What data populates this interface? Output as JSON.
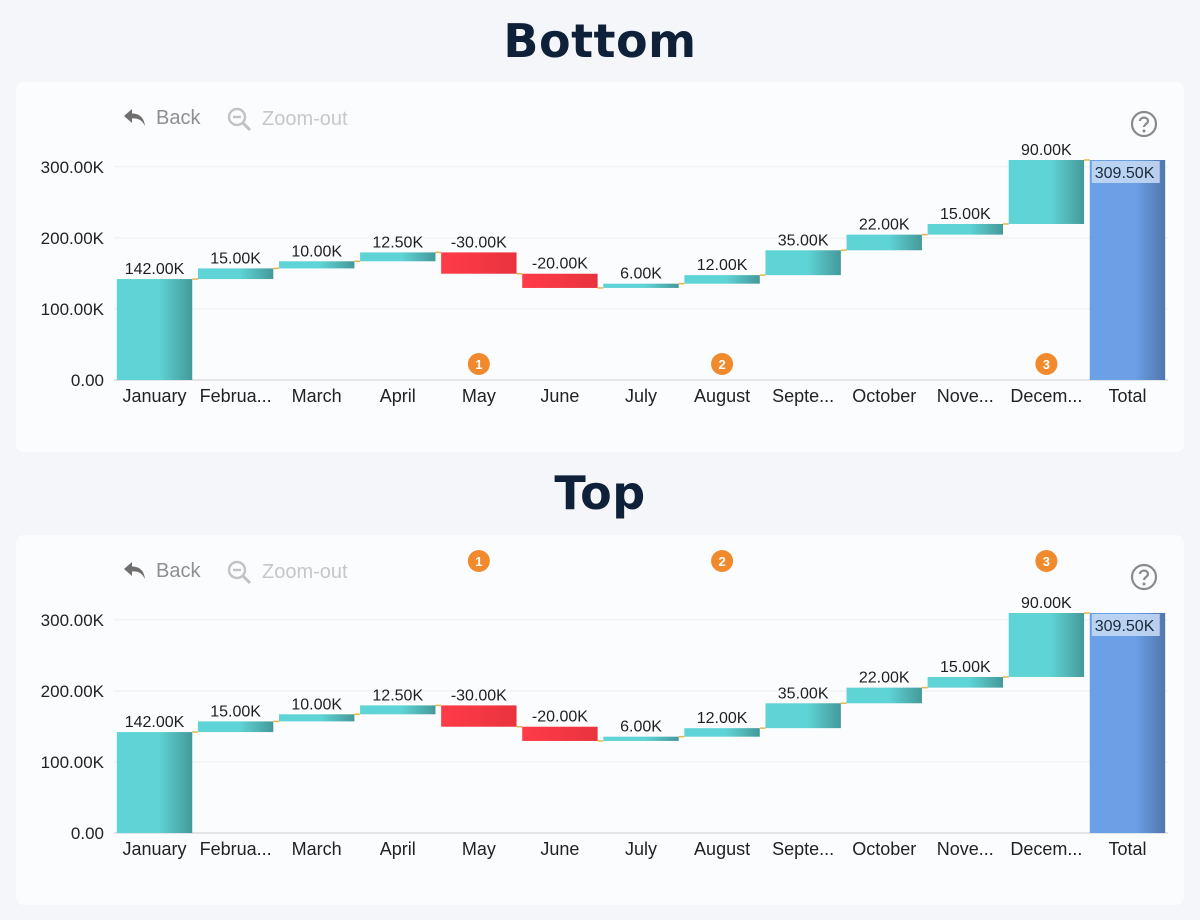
{
  "sections": [
    {
      "title": "Bottom",
      "toolbar": {
        "back_label": "Back",
        "zoom_label": "Zoom-out",
        "back_icon": "undo-arrow-icon",
        "zoom_icon": "zoom-out-icon",
        "help_icon": "question-circle-icon"
      },
      "marker_position": "bottom",
      "chart_data": {
        "type": "waterfall",
        "categories": [
          "January",
          "Februa...",
          "March",
          "April",
          "May",
          "June",
          "July",
          "August",
          "Septe...",
          "October",
          "Nove...",
          "Decem...",
          "Total"
        ],
        "values": [
          142000,
          15000,
          10000,
          12500,
          -30000,
          -20000,
          6000,
          12000,
          35000,
          22000,
          15000,
          90000,
          309500
        ],
        "data_labels": [
          "142.00K",
          "15.00K",
          "10.00K",
          "12.50K",
          "-30.00K",
          "-20.00K",
          "6.00K",
          "12.00K",
          "35.00K",
          "22.00K",
          "15.00K",
          "90.00K",
          "309.50K"
        ],
        "total_index": 12,
        "ylim": [
          0,
          309500
        ],
        "y_ticks": [
          0,
          100000,
          200000,
          300000
        ],
        "y_tick_labels": [
          "0.00",
          "100.00K",
          "200.00K",
          "300.00K"
        ],
        "grid": true,
        "markers": [
          {
            "label": "1",
            "index": 4
          },
          {
            "label": "2",
            "index": 7
          },
          {
            "label": "3",
            "index": 11
          }
        ],
        "colors": {
          "increase": "#5fd4d6",
          "decrease": "#e8333e",
          "total": "#6b9fe6",
          "marker": "#f08a2c",
          "connector": "#e9b54a"
        }
      }
    },
    {
      "title": "Top",
      "toolbar": {
        "back_label": "Back",
        "zoom_label": "Zoom-out",
        "back_icon": "undo-arrow-icon",
        "zoom_icon": "zoom-out-icon",
        "help_icon": "question-circle-icon"
      },
      "marker_position": "top",
      "chart_data": {
        "type": "waterfall",
        "categories": [
          "January",
          "Februa...",
          "March",
          "April",
          "May",
          "June",
          "July",
          "August",
          "Septe...",
          "October",
          "Nove...",
          "Decem...",
          "Total"
        ],
        "values": [
          142000,
          15000,
          10000,
          12500,
          -30000,
          -20000,
          6000,
          12000,
          35000,
          22000,
          15000,
          90000,
          309500
        ],
        "data_labels": [
          "142.00K",
          "15.00K",
          "10.00K",
          "12.50K",
          "-30.00K",
          "-20.00K",
          "6.00K",
          "12.00K",
          "35.00K",
          "22.00K",
          "15.00K",
          "90.00K",
          "309.50K"
        ],
        "total_index": 12,
        "ylim": [
          0,
          309500
        ],
        "y_ticks": [
          0,
          100000,
          200000,
          300000
        ],
        "y_tick_labels": [
          "0.00",
          "100.00K",
          "200.00K",
          "300.00K"
        ],
        "grid": true,
        "markers": [
          {
            "label": "1",
            "index": 4
          },
          {
            "label": "2",
            "index": 7
          },
          {
            "label": "3",
            "index": 11
          }
        ],
        "colors": {
          "increase": "#5fd4d6",
          "decrease": "#e8333e",
          "total": "#6b9fe6",
          "marker": "#f08a2c",
          "connector": "#e9b54a"
        }
      }
    }
  ]
}
